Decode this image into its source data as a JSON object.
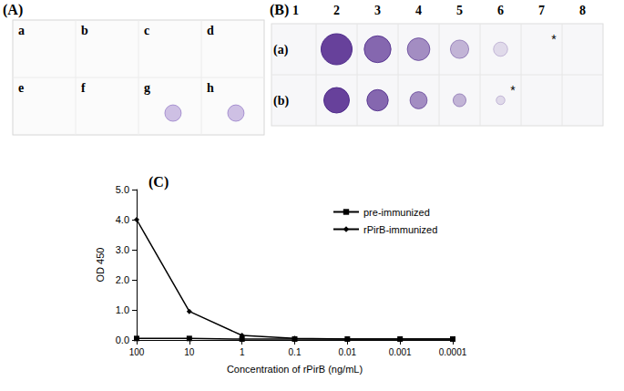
{
  "panel_a": {
    "label": "(A)",
    "cells": [
      {
        "label": "a",
        "dot": false
      },
      {
        "label": "b",
        "dot": false
      },
      {
        "label": "c",
        "dot": false
      },
      {
        "label": "d",
        "dot": false
      },
      {
        "label": "e",
        "dot": false
      },
      {
        "label": "f",
        "dot": false
      },
      {
        "label": "g",
        "dot": true
      },
      {
        "label": "h",
        "dot": true
      }
    ]
  },
  "panel_b": {
    "label": "(B)",
    "columns": [
      "1",
      "2",
      "3",
      "4",
      "5",
      "6",
      "7",
      "8"
    ],
    "rows": [
      {
        "label": "(a)",
        "dots": [
          false,
          true,
          true,
          true,
          true,
          true,
          false,
          false
        ],
        "marks": [
          null,
          null,
          null,
          null,
          null,
          null,
          "*",
          null
        ]
      },
      {
        "label": "(b)",
        "dots": [
          false,
          true,
          true,
          true,
          true,
          true,
          false,
          false
        ],
        "marks": [
          null,
          null,
          null,
          null,
          null,
          "*",
          null,
          null
        ]
      }
    ]
  },
  "chart_data": {
    "type": "line",
    "title": "(C)",
    "x_label": "Concentration of rPirB (ng/mL)",
    "y_label": "OD 450",
    "categories": [
      "100",
      "10",
      "1",
      "0.1",
      "0.01",
      "0.001",
      "0.0001"
    ],
    "series": [
      {
        "name": "pre-immunized",
        "color": "#000000",
        "marker": "square",
        "values": [
          0.05,
          0.05,
          0.03,
          0.03,
          0.03,
          0.03,
          0.03
        ]
      },
      {
        "name": "rPirB-immunized",
        "color": "#000000",
        "marker": "diamond",
        "values": [
          4.0,
          0.95,
          0.15,
          0.05,
          0.03,
          0.03,
          0.03
        ]
      }
    ],
    "ylim": [
      0,
      5
    ],
    "yticks": [
      {
        "value": 0,
        "label": "0.0"
      },
      {
        "value": 1,
        "label": "1.0"
      },
      {
        "value": 2,
        "label": "2.0"
      },
      {
        "value": 3,
        "label": "3.0"
      },
      {
        "value": 4,
        "label": "4.0"
      },
      {
        "value": 5,
        "label": "5.0"
      }
    ],
    "grid": false,
    "legend": "upper right"
  }
}
